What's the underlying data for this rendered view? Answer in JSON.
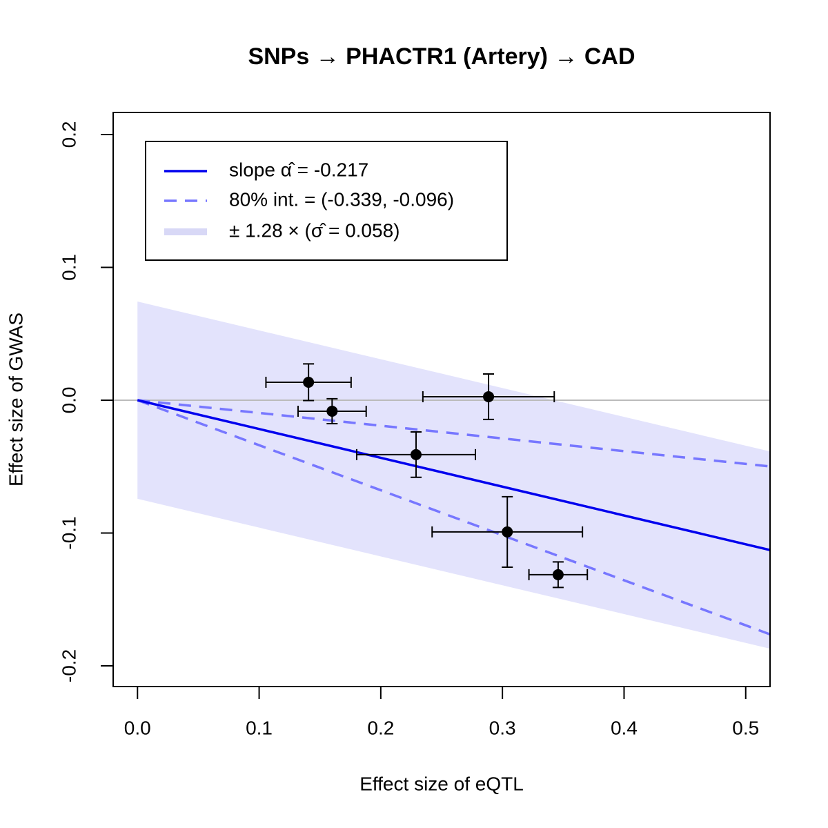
{
  "chart_data": {
    "type": "scatter",
    "title": "SNPs → PHACTR1 (Artery) → CAD",
    "xlabel": "Effect size of eQTL",
    "ylabel": "Effect size of GWAS",
    "xlim": [
      -0.02,
      0.52
    ],
    "ylim": [
      -0.2156,
      0.2166
    ],
    "xticks": [
      {
        "value": 0,
        "label": "0.0"
      },
      0.1,
      0.2,
      0.3,
      0.4,
      0.5
    ],
    "yticks": [
      -0.2,
      -0.1,
      {
        "value": 0,
        "label": "0.0"
      },
      0.1,
      0.2
    ],
    "hline": 0,
    "slope": -0.217,
    "interval": [
      -0.339,
      -0.096
    ],
    "sigma": 0.058,
    "band_multiplier": 1.28,
    "slope_color": "#0000ee",
    "interval_color": "#7777ff",
    "band_color": "#e3e3fc",
    "legend_band_color": "#d8d8f6",
    "hline_color": "#bbbbbb",
    "legend": [
      "slope α̂ = -0.217",
      "80% int. = (-0.339, -0.096)",
      "± 1.28 × (σ̂ = 0.058)"
    ],
    "legend_position": "top-left",
    "series": [
      {
        "color": "#000000",
        "x": [
          0.1406,
          0.16,
          0.229,
          0.2886,
          0.304,
          0.3458
        ],
        "y": [
          0.0135,
          -0.0083,
          -0.041,
          0.0026,
          -0.0992,
          -0.1314
        ],
        "x_err": [
          0.035,
          0.028,
          0.0488,
          0.054,
          0.0618,
          0.024
        ],
        "y_err": [
          0.0138,
          0.0094,
          0.0171,
          0.0171,
          0.0265,
          0.0096
        ]
      }
    ]
  }
}
